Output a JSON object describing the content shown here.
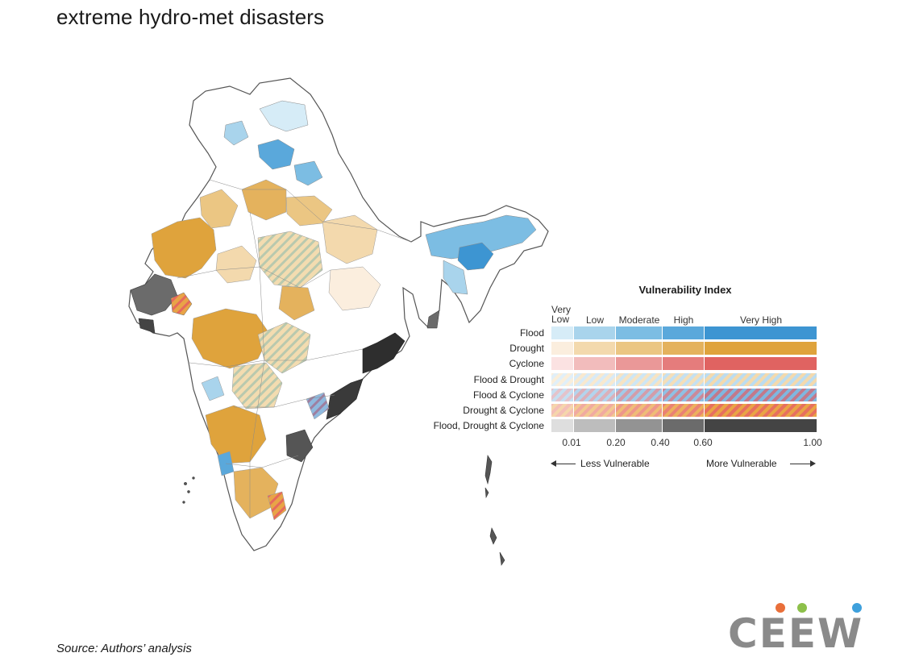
{
  "header": {
    "title": "extreme hydro-met disasters"
  },
  "footer": {
    "source": "Source: Authors’ analysis"
  },
  "map": {
    "region": "India",
    "colors": {
      "flood": "#4597d2",
      "drought": "#e0a23a",
      "cyclone": "#e2635f",
      "combined": "#2e2e2e",
      "border": "#7a7a7a",
      "land": "#ffffff"
    }
  },
  "legend": {
    "title": "Vulnerability Index",
    "classes": [
      "Very Low",
      "Low",
      "Moderate",
      "High",
      "Very High"
    ],
    "breaks": [
      0.01,
      0.2,
      0.4,
      0.6,
      1.0
    ],
    "tick_labels": [
      "0.01",
      "0.20",
      "0.40",
      "0.60",
      "1.00"
    ],
    "less_label": "Less Vulnerable",
    "more_label": "More Vulnerable",
    "rows": [
      {
        "label": "Flood",
        "pattern": "solid",
        "colors": [
          "#d6ecf7",
          "#a9d4ec",
          "#7cbde3",
          "#5aa8db",
          "#3d95d2"
        ]
      },
      {
        "label": "Drought",
        "pattern": "solid",
        "colors": [
          "#fbeede",
          "#f3d9ad",
          "#ebc683",
          "#e4b25d",
          "#dfa33c"
        ]
      },
      {
        "label": "Cyclone",
        "pattern": "solid",
        "colors": [
          "#fbe2e2",
          "#f2bcbc",
          "#ea9898",
          "#e57c7c",
          "#e06361"
        ]
      },
      {
        "label": "Flood & Drought",
        "pattern": "stripe",
        "colors": [
          "#bcdcef",
          "#f3d9ad"
        ]
      },
      {
        "label": "Flood & Cyclone",
        "pattern": "stripe",
        "colors": [
          "#7fb7e0",
          "#c2798b"
        ]
      },
      {
        "label": "Drought & Cyclone",
        "pattern": "stripe",
        "colors": [
          "#e9a445",
          "#e7705f"
        ]
      },
      {
        "label": "Flood, Drought & Cyclone",
        "pattern": "solid",
        "colors": [
          "#dedede",
          "#bdbdbd",
          "#939393",
          "#6b6b6b",
          "#444444"
        ]
      }
    ]
  },
  "logo": {
    "text": "CEEW",
    "dot_colors": [
      "#e96f3a",
      "#8dc04a",
      "#3ea0dc"
    ]
  }
}
